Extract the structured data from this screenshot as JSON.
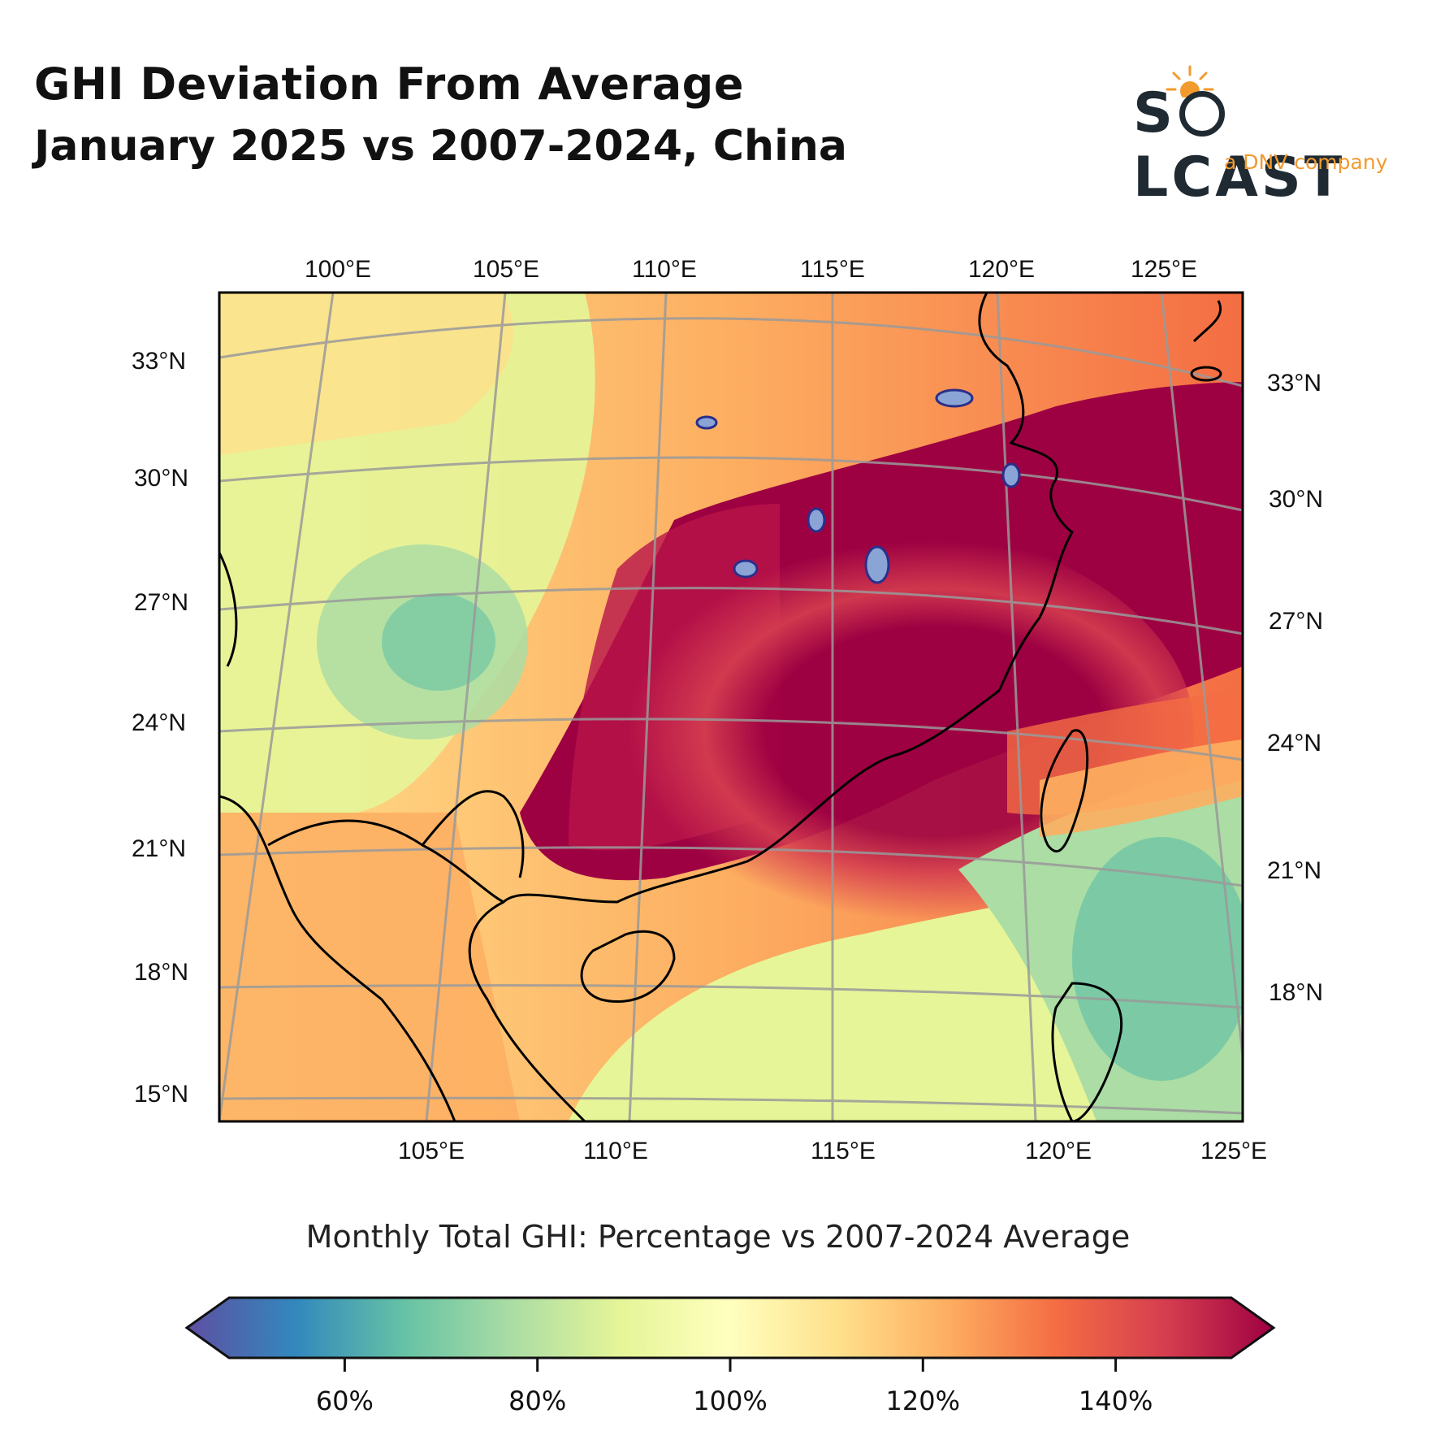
{
  "header": {
    "title": "GHI Deviation From Average",
    "subtitle": "January 2025 vs 2007-2024, China"
  },
  "logo": {
    "word": "S LCAST",
    "tagline": "a DNV company",
    "brand_color": "#1f2a33",
    "accent_color": "#f29a2e"
  },
  "map": {
    "top_lon_labels": [
      "100°E",
      "105°E",
      "110°E",
      "115°E",
      "120°E",
      "125°E"
    ],
    "bottom_lon_labels": [
      "105°E",
      "110°E",
      "115°E",
      "120°E",
      "125°E"
    ],
    "left_lat_labels": [
      "33°N",
      "30°N",
      "27°N",
      "24°N",
      "21°N",
      "18°N",
      "15°N"
    ],
    "right_lat_labels": [
      "33°N",
      "30°N",
      "27°N",
      "24°N",
      "21°N",
      "18°N"
    ]
  },
  "colorbar": {
    "title": "Monthly Total GHI: Percentage vs 2007-2024 Average",
    "tick_labels": [
      "60%",
      "80%",
      "100%",
      "120%",
      "140%"
    ],
    "tick_values": [
      60,
      80,
      100,
      120,
      140
    ],
    "range": [
      48,
      152
    ],
    "colormap": "Spectral_r",
    "colors": [
      "#5e4fa2",
      "#3288bd",
      "#66c2a5",
      "#abdda4",
      "#e6f598",
      "#ffffbf",
      "#fee08b",
      "#fdae61",
      "#f46d43",
      "#d53e4f",
      "#9e0142"
    ]
  }
}
